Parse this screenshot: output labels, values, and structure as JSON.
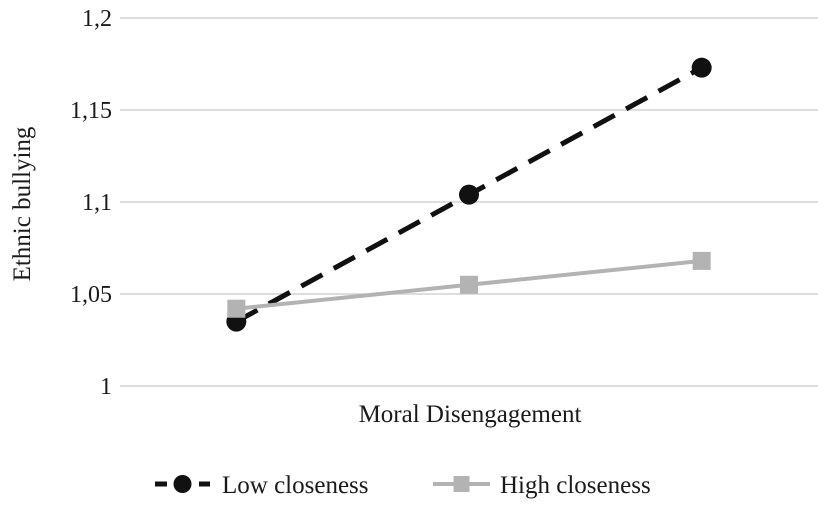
{
  "chart_data": {
    "type": "line",
    "title": "",
    "xlabel": "Moral Disengagement",
    "ylabel": "Ethnic bullying",
    "ylim": [
      1,
      1.2
    ],
    "yticks": [
      1,
      1.05,
      1.1,
      1.15,
      1.2
    ],
    "ytick_labels": [
      "1",
      "1,05",
      "1,1",
      "1,15",
      "1,2"
    ],
    "x": [
      1,
      2,
      3
    ],
    "grid": "horizontal",
    "legend_position": "bottom",
    "series": [
      {
        "name": "Low closeness",
        "values": [
          1.035,
          1.104,
          1.173
        ],
        "color": "#111111",
        "line_style": "dashed",
        "marker": "circle"
      },
      {
        "name": "High closeness",
        "values": [
          1.042,
          1.055,
          1.068
        ],
        "color": "#b3b3b3",
        "line_style": "solid",
        "marker": "square"
      }
    ]
  }
}
